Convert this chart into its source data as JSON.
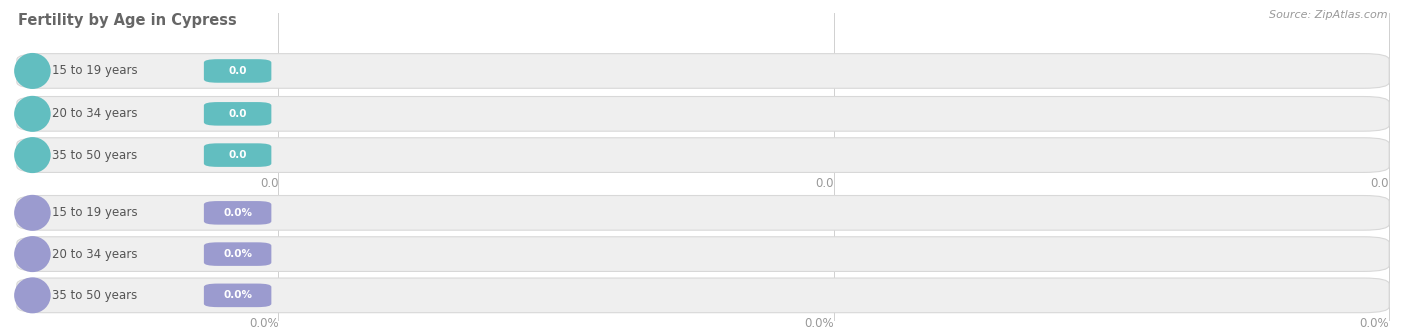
{
  "title": "Fertility by Age in Cypress",
  "source_text": "Source: ZipAtlas.com",
  "group1_labels": [
    "15 to 19 years",
    "20 to 34 years",
    "35 to 50 years"
  ],
  "group2_labels": [
    "15 to 19 years",
    "20 to 34 years",
    "35 to 50 years"
  ],
  "group1_value_labels": [
    "0.0",
    "0.0",
    "0.0"
  ],
  "group2_value_labels": [
    "0.0%",
    "0.0%",
    "0.0%"
  ],
  "group1_bar_color": "#62bec0",
  "group2_bar_color": "#9b9bcf",
  "tick_label_color": "#999999",
  "title_color": "#666666",
  "source_color": "#999999",
  "bg_color": "#ffffff",
  "bar_bg_color": "#efefef",
  "bar_text_color": "#ffffff",
  "label_text_color": "#555555",
  "axis_labels_top": [
    "0.0",
    "0.0",
    "0.0"
  ],
  "axis_labels_bottom": [
    "0.0%",
    "0.0%",
    "0.0%"
  ],
  "figsize": [
    14.06,
    3.3
  ],
  "dpi": 100
}
